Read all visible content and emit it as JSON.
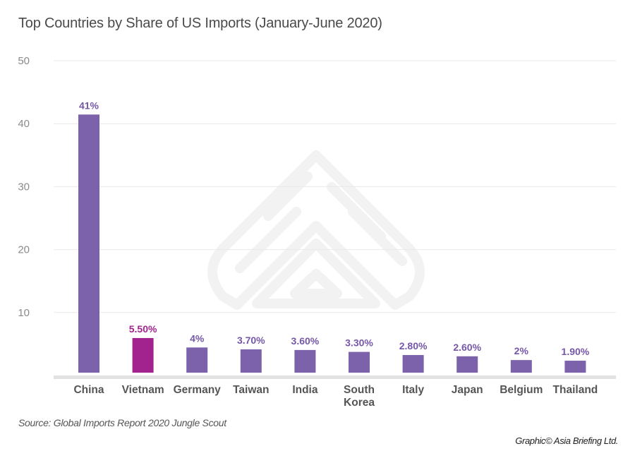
{
  "colors": {
    "bar": "#7B62AB",
    "highlight": "#A3238E",
    "label": "#7557A8",
    "grid": "#e9e9e9",
    "axis": "#e2e2e2",
    "watermark": "#f2f2f2"
  },
  "watermark": {
    "name": "Asia Briefing logo"
  },
  "source": "Source: Global Imports Report 2020 Jungle Scout",
  "credit": "Graphic© Asia Briefing Ltd.",
  "chart_data": {
    "type": "bar",
    "title": "Top Countries by Share of US Imports (January-June 2020)",
    "xlabel": "",
    "ylabel": "",
    "ylim": [
      0,
      50
    ],
    "yticks": [
      10,
      20,
      30,
      40,
      50
    ],
    "grid": true,
    "categories": [
      "China",
      "Vietnam",
      "Germany",
      "Taiwan",
      "India",
      "South Korea",
      "Italy",
      "Japan",
      "Belgium",
      "Thailand"
    ],
    "category_lines": [
      [
        "China"
      ],
      [
        "Vietnam"
      ],
      [
        "Germany"
      ],
      [
        "Taiwan"
      ],
      [
        "India"
      ],
      [
        "South",
        "Korea"
      ],
      [
        "Italy"
      ],
      [
        "Japan"
      ],
      [
        "Belgium"
      ],
      [
        "Thailand"
      ]
    ],
    "values": [
      41,
      5.5,
      4,
      3.7,
      3.6,
      3.3,
      2.8,
      2.6,
      2,
      1.9
    ],
    "data_labels": [
      "41%",
      "5.50%",
      "4%",
      "3.70%",
      "3.60%",
      "3.30%",
      "2.80%",
      "2.60%",
      "2%",
      "1.90%"
    ],
    "highlight": [
      "Vietnam"
    ]
  }
}
